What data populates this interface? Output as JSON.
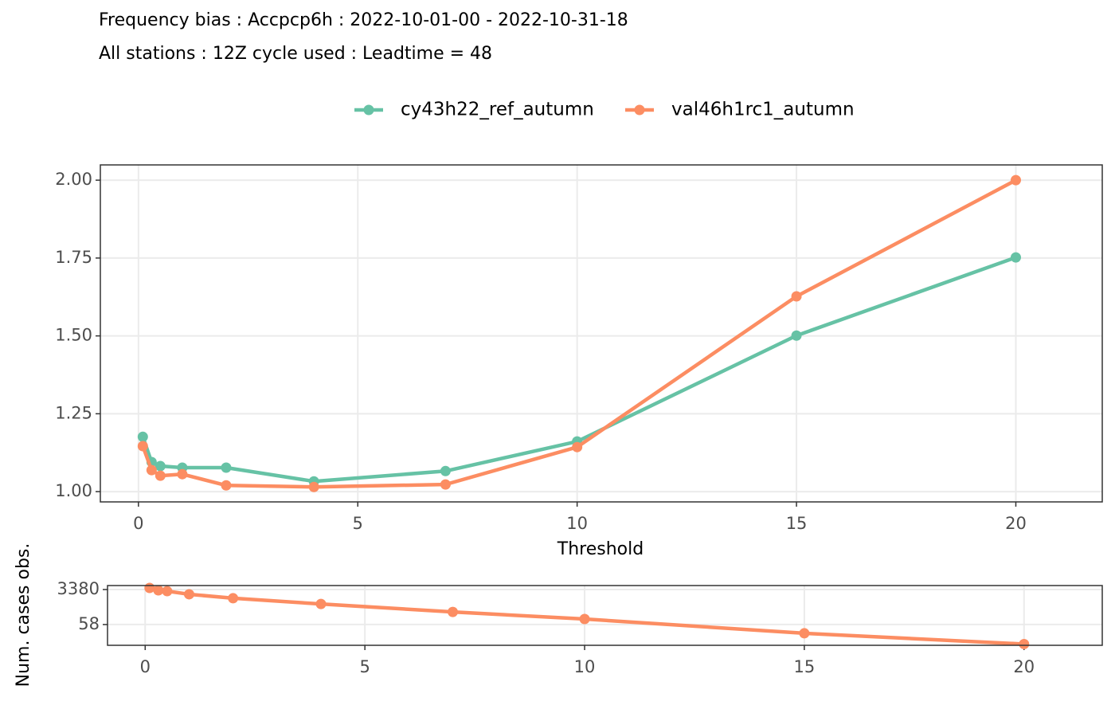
{
  "chart_data": [
    {
      "type": "line",
      "title": "Frequency bias : Accpcp6h : 2022-10-01-00 - 2022-10-31-18",
      "subtitle": "All stations : 12Z cycle used : Leadtime = 48",
      "xlabel": "Threshold",
      "x": [
        0.1,
        0.3,
        0.5,
        1,
        2,
        4,
        7,
        10,
        15,
        20
      ],
      "series": [
        {
          "name": "cy43h22_ref_autumn",
          "color": "#66c2a5",
          "values": [
            1.176,
            1.095,
            1.082,
            1.077,
            1.077,
            1.033,
            1.066,
            1.161,
            1.501,
            1.752
          ]
        },
        {
          "name": "val46h1rc1_autumn",
          "color": "#fc8d62",
          "values": [
            1.146,
            1.069,
            1.051,
            1.056,
            1.02,
            1.015,
            1.023,
            1.143,
            1.627,
            2.0
          ]
        }
      ],
      "xlim": [
        -0.868,
        21.97
      ],
      "ylim": [
        0.967,
        2.049
      ],
      "xticks": [
        0,
        5,
        10,
        15,
        20
      ],
      "yticks": [
        {
          "value": 1.0,
          "label": "1.00"
        },
        {
          "value": 1.25,
          "label": "1.25"
        },
        {
          "value": 1.5,
          "label": "1.50"
        },
        {
          "value": 1.75,
          "label": "1.75"
        },
        {
          "value": 2.0,
          "label": "2.00"
        }
      ],
      "grid": true,
      "legend": "top"
    },
    {
      "type": "line",
      "ylabel": "Num. cases obs.",
      "x": [
        0.1,
        0.3,
        0.5,
        1,
        2,
        4,
        7,
        10,
        15,
        20
      ],
      "values": [
        4060,
        3080,
        2800,
        1950,
        1230,
        630,
        250,
        110,
        21,
        6
      ],
      "color": "#fc8d62",
      "log_scale": true,
      "xlim": [
        -0.857,
        21.78
      ],
      "ylim": [
        5.2,
        5370
      ],
      "xticks": [
        0,
        5,
        10,
        15,
        20
      ],
      "yticks": [
        58,
        3380
      ],
      "grid": true
    }
  ]
}
